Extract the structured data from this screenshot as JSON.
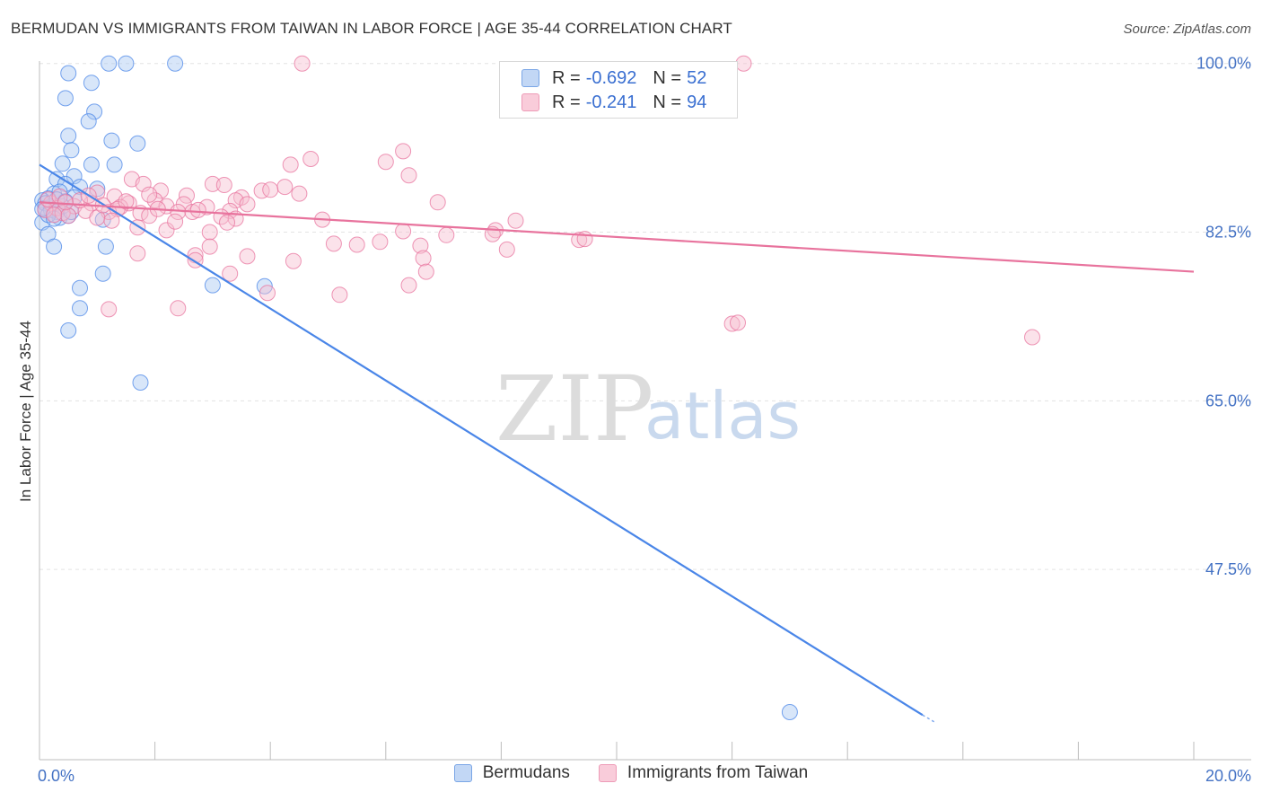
{
  "header": {
    "title": "BERMUDAN VS IMMIGRANTS FROM TAIWAN IN LABOR FORCE | AGE 35-44 CORRELATION CHART",
    "source": "Source: ZipAtlas.com"
  },
  "legend": {
    "rows": [
      {
        "r_label": "R =",
        "r_value": "-0.692",
        "n_label": "N =",
        "n_value": "52",
        "color": "#9fc0f0"
      },
      {
        "r_label": "R =",
        "r_value": "-0.241",
        "n_label": "N =",
        "n_value": "94",
        "color": "#f5b6cb"
      }
    ]
  },
  "bottom_legend": {
    "items": [
      {
        "label": "Bermudans",
        "color": "#9fc0f0"
      },
      {
        "label": "Immigrants from Taiwan",
        "color": "#f5b6cb"
      }
    ]
  },
  "watermark": {
    "zip": "ZIP",
    "atlas": "atlas"
  },
  "chart_data": {
    "type": "scatter",
    "ylabel": "In Labor Force | Age 35-44",
    "xlim": [
      0,
      20
    ],
    "ylim": [
      30,
      101
    ],
    "x_ticks": [
      {
        "value": 0,
        "label": "0.0%"
      },
      {
        "value": 20,
        "label": "20.0%"
      }
    ],
    "y_ticks": [
      {
        "value": 100,
        "label": "100.0%"
      },
      {
        "value": 82.5,
        "label": "82.5%"
      },
      {
        "value": 65,
        "label": "65.0%"
      },
      {
        "value": 47.5,
        "label": "47.5%"
      }
    ],
    "grid": true,
    "series": [
      {
        "name": "Bermudans",
        "color": "#4a86e8",
        "fill": "#a9c8f2",
        "trend": {
          "x": [
            0,
            15.3
          ],
          "y": [
            89.5,
            32.4
          ],
          "dash_to": [
            15.5,
            31.7
          ]
        },
        "points": [
          [
            1.2,
            100
          ],
          [
            1.5,
            100
          ],
          [
            2.35,
            100
          ],
          [
            0.5,
            99
          ],
          [
            0.9,
            98
          ],
          [
            0.45,
            96.4
          ],
          [
            0.95,
            95
          ],
          [
            0.85,
            94
          ],
          [
            0.5,
            92.5
          ],
          [
            1.25,
            92
          ],
          [
            1.7,
            91.7
          ],
          [
            0.55,
            91
          ],
          [
            0.4,
            89.6
          ],
          [
            0.9,
            89.5
          ],
          [
            1.3,
            89.5
          ],
          [
            0.6,
            88.3
          ],
          [
            0.3,
            88
          ],
          [
            0.45,
            87.5
          ],
          [
            0.7,
            87.2
          ],
          [
            1.0,
            87
          ],
          [
            0.25,
            86.5
          ],
          [
            0.35,
            86.7
          ],
          [
            0.15,
            86
          ],
          [
            0.05,
            85.8
          ],
          [
            0.2,
            85.2
          ],
          [
            0.1,
            85
          ],
          [
            0.3,
            84.6
          ],
          [
            0.35,
            84
          ],
          [
            0.5,
            84.2
          ],
          [
            0.05,
            83.5
          ],
          [
            0.15,
            82.3
          ],
          [
            1.1,
            83.8
          ],
          [
            0.25,
            81
          ],
          [
            1.15,
            81
          ],
          [
            1.1,
            78.2
          ],
          [
            3.0,
            77
          ],
          [
            3.9,
            76.9
          ],
          [
            0.7,
            76.7
          ],
          [
            0.7,
            74.6
          ],
          [
            0.5,
            72.3
          ],
          [
            1.75,
            66.9
          ],
          [
            13.0,
            32.7
          ],
          [
            0.1,
            85.5
          ],
          [
            0.2,
            84.8
          ],
          [
            0.4,
            85.2
          ],
          [
            0.6,
            86.1
          ],
          [
            0.15,
            84.3
          ],
          [
            0.3,
            85.9
          ],
          [
            0.05,
            84.9
          ],
          [
            0.25,
            83.9
          ],
          [
            0.45,
            85.7
          ],
          [
            0.55,
            84.6
          ]
        ]
      },
      {
        "name": "Immigrants from Taiwan",
        "color": "#e8739d",
        "fill": "#f7bfd1",
        "trend": {
          "x": [
            0,
            20
          ],
          "y": [
            85.6,
            78.4
          ]
        },
        "points": [
          [
            4.55,
            100
          ],
          [
            12.2,
            100
          ],
          [
            4.7,
            90.1
          ],
          [
            6.3,
            90.9
          ],
          [
            6.0,
            89.8
          ],
          [
            4.35,
            89.5
          ],
          [
            6.4,
            88.4
          ],
          [
            1.6,
            88
          ],
          [
            1.8,
            87.5
          ],
          [
            3.0,
            87.5
          ],
          [
            3.2,
            87.4
          ],
          [
            4.25,
            87.2
          ],
          [
            2.1,
            86.8
          ],
          [
            3.85,
            86.8
          ],
          [
            1.0,
            86.6
          ],
          [
            2.55,
            86.3
          ],
          [
            3.5,
            86.1
          ],
          [
            4.5,
            86.5
          ],
          [
            1.3,
            86.2
          ],
          [
            1.55,
            85.5
          ],
          [
            2.0,
            85.8
          ],
          [
            2.5,
            85.4
          ],
          [
            3.4,
            85.8
          ],
          [
            0.2,
            85.5
          ],
          [
            0.3,
            85
          ],
          [
            0.6,
            85.2
          ],
          [
            0.9,
            85.5
          ],
          [
            1.4,
            85.1
          ],
          [
            2.2,
            85.2
          ],
          [
            2.9,
            85.1
          ],
          [
            3.6,
            85.4
          ],
          [
            0.1,
            84.8
          ],
          [
            0.4,
            84.5
          ],
          [
            0.8,
            84.7
          ],
          [
            1.2,
            84.6
          ],
          [
            1.75,
            84.5
          ],
          [
            2.4,
            84.6
          ],
          [
            2.65,
            84.6
          ],
          [
            3.3,
            84.7
          ],
          [
            6.9,
            85.6
          ],
          [
            1.0,
            84
          ],
          [
            1.9,
            84.2
          ],
          [
            3.15,
            84.1
          ],
          [
            3.4,
            83.9
          ],
          [
            4.9,
            83.8
          ],
          [
            8.25,
            83.7
          ],
          [
            1.7,
            83
          ],
          [
            2.2,
            82.7
          ],
          [
            2.95,
            82.5
          ],
          [
            6.3,
            82.6
          ],
          [
            7.05,
            82.2
          ],
          [
            7.9,
            82.7
          ],
          [
            7.85,
            82.3
          ],
          [
            9.35,
            81.7
          ],
          [
            9.45,
            81.8
          ],
          [
            5.1,
            81.3
          ],
          [
            5.5,
            81.2
          ],
          [
            5.9,
            81.5
          ],
          [
            6.6,
            81.1
          ],
          [
            2.95,
            81
          ],
          [
            8.1,
            80.7
          ],
          [
            1.7,
            80.3
          ],
          [
            2.7,
            80.1
          ],
          [
            3.6,
            80
          ],
          [
            4.4,
            79.5
          ],
          [
            6.65,
            79.8
          ],
          [
            2.7,
            79.6
          ],
          [
            6.7,
            78.4
          ],
          [
            3.3,
            78.2
          ],
          [
            6.4,
            77
          ],
          [
            3.95,
            76.2
          ],
          [
            5.2,
            76
          ],
          [
            1.2,
            74.5
          ],
          [
            2.4,
            74.6
          ],
          [
            12.0,
            73
          ],
          [
            12.1,
            73.1
          ],
          [
            17.2,
            71.6
          ],
          [
            0.15,
            85.9
          ],
          [
            0.35,
            86.2
          ],
          [
            0.5,
            84.2
          ],
          [
            0.7,
            85.8
          ],
          [
            1.1,
            85.3
          ],
          [
            1.35,
            84.9
          ],
          [
            1.5,
            85.7
          ],
          [
            2.35,
            83.6
          ],
          [
            2.75,
            84.8
          ],
          [
            3.25,
            83.5
          ],
          [
            4.0,
            86.9
          ],
          [
            0.25,
            84.3
          ],
          [
            0.45,
            85.6
          ],
          [
            0.85,
            86.3
          ],
          [
            1.25,
            83.7
          ],
          [
            1.9,
            86.4
          ],
          [
            2.05,
            84.9
          ]
        ]
      }
    ]
  }
}
